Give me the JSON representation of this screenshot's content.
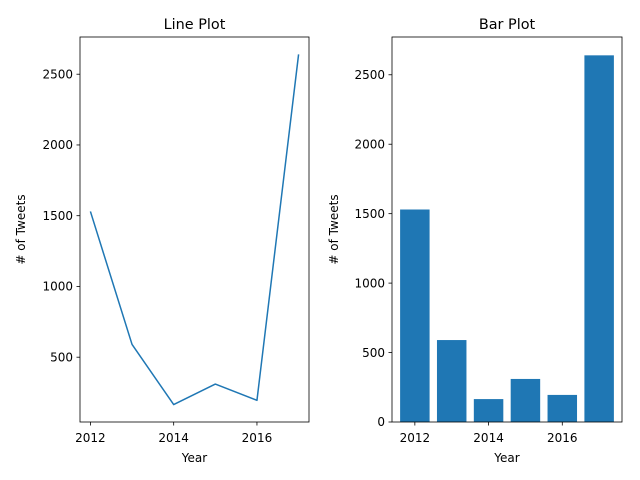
{
  "chart_data": [
    {
      "type": "line",
      "title": "Line Plot",
      "xlabel": "Year",
      "ylabel": "# of Tweets",
      "x": [
        2012,
        2013,
        2014,
        2015,
        2016,
        2017
      ],
      "values": [
        1530,
        590,
        165,
        310,
        195,
        2640
      ],
      "xticks": [
        2012,
        2014,
        2016
      ],
      "yticks": [
        500,
        1000,
        1500,
        2000,
        2500
      ],
      "xlim": [
        2011.75,
        2017.25
      ],
      "ylim": [
        42,
        2763
      ],
      "grid": false,
      "color": "#1f77b4"
    },
    {
      "type": "bar",
      "title": "Bar Plot",
      "xlabel": "Year",
      "ylabel": "# of Tweets",
      "categories": [
        2012,
        2013,
        2014,
        2015,
        2016,
        2017
      ],
      "values": [
        1530,
        590,
        165,
        310,
        195,
        2640
      ],
      "xticks": [
        2012,
        2014,
        2016
      ],
      "yticks": [
        0,
        500,
        1000,
        1500,
        2000,
        2500
      ],
      "xlim": [
        2011.38,
        2017.62
      ],
      "ylim": [
        0,
        2772
      ],
      "bar_width": 0.8,
      "grid": false,
      "color": "#1f77b4"
    }
  ]
}
